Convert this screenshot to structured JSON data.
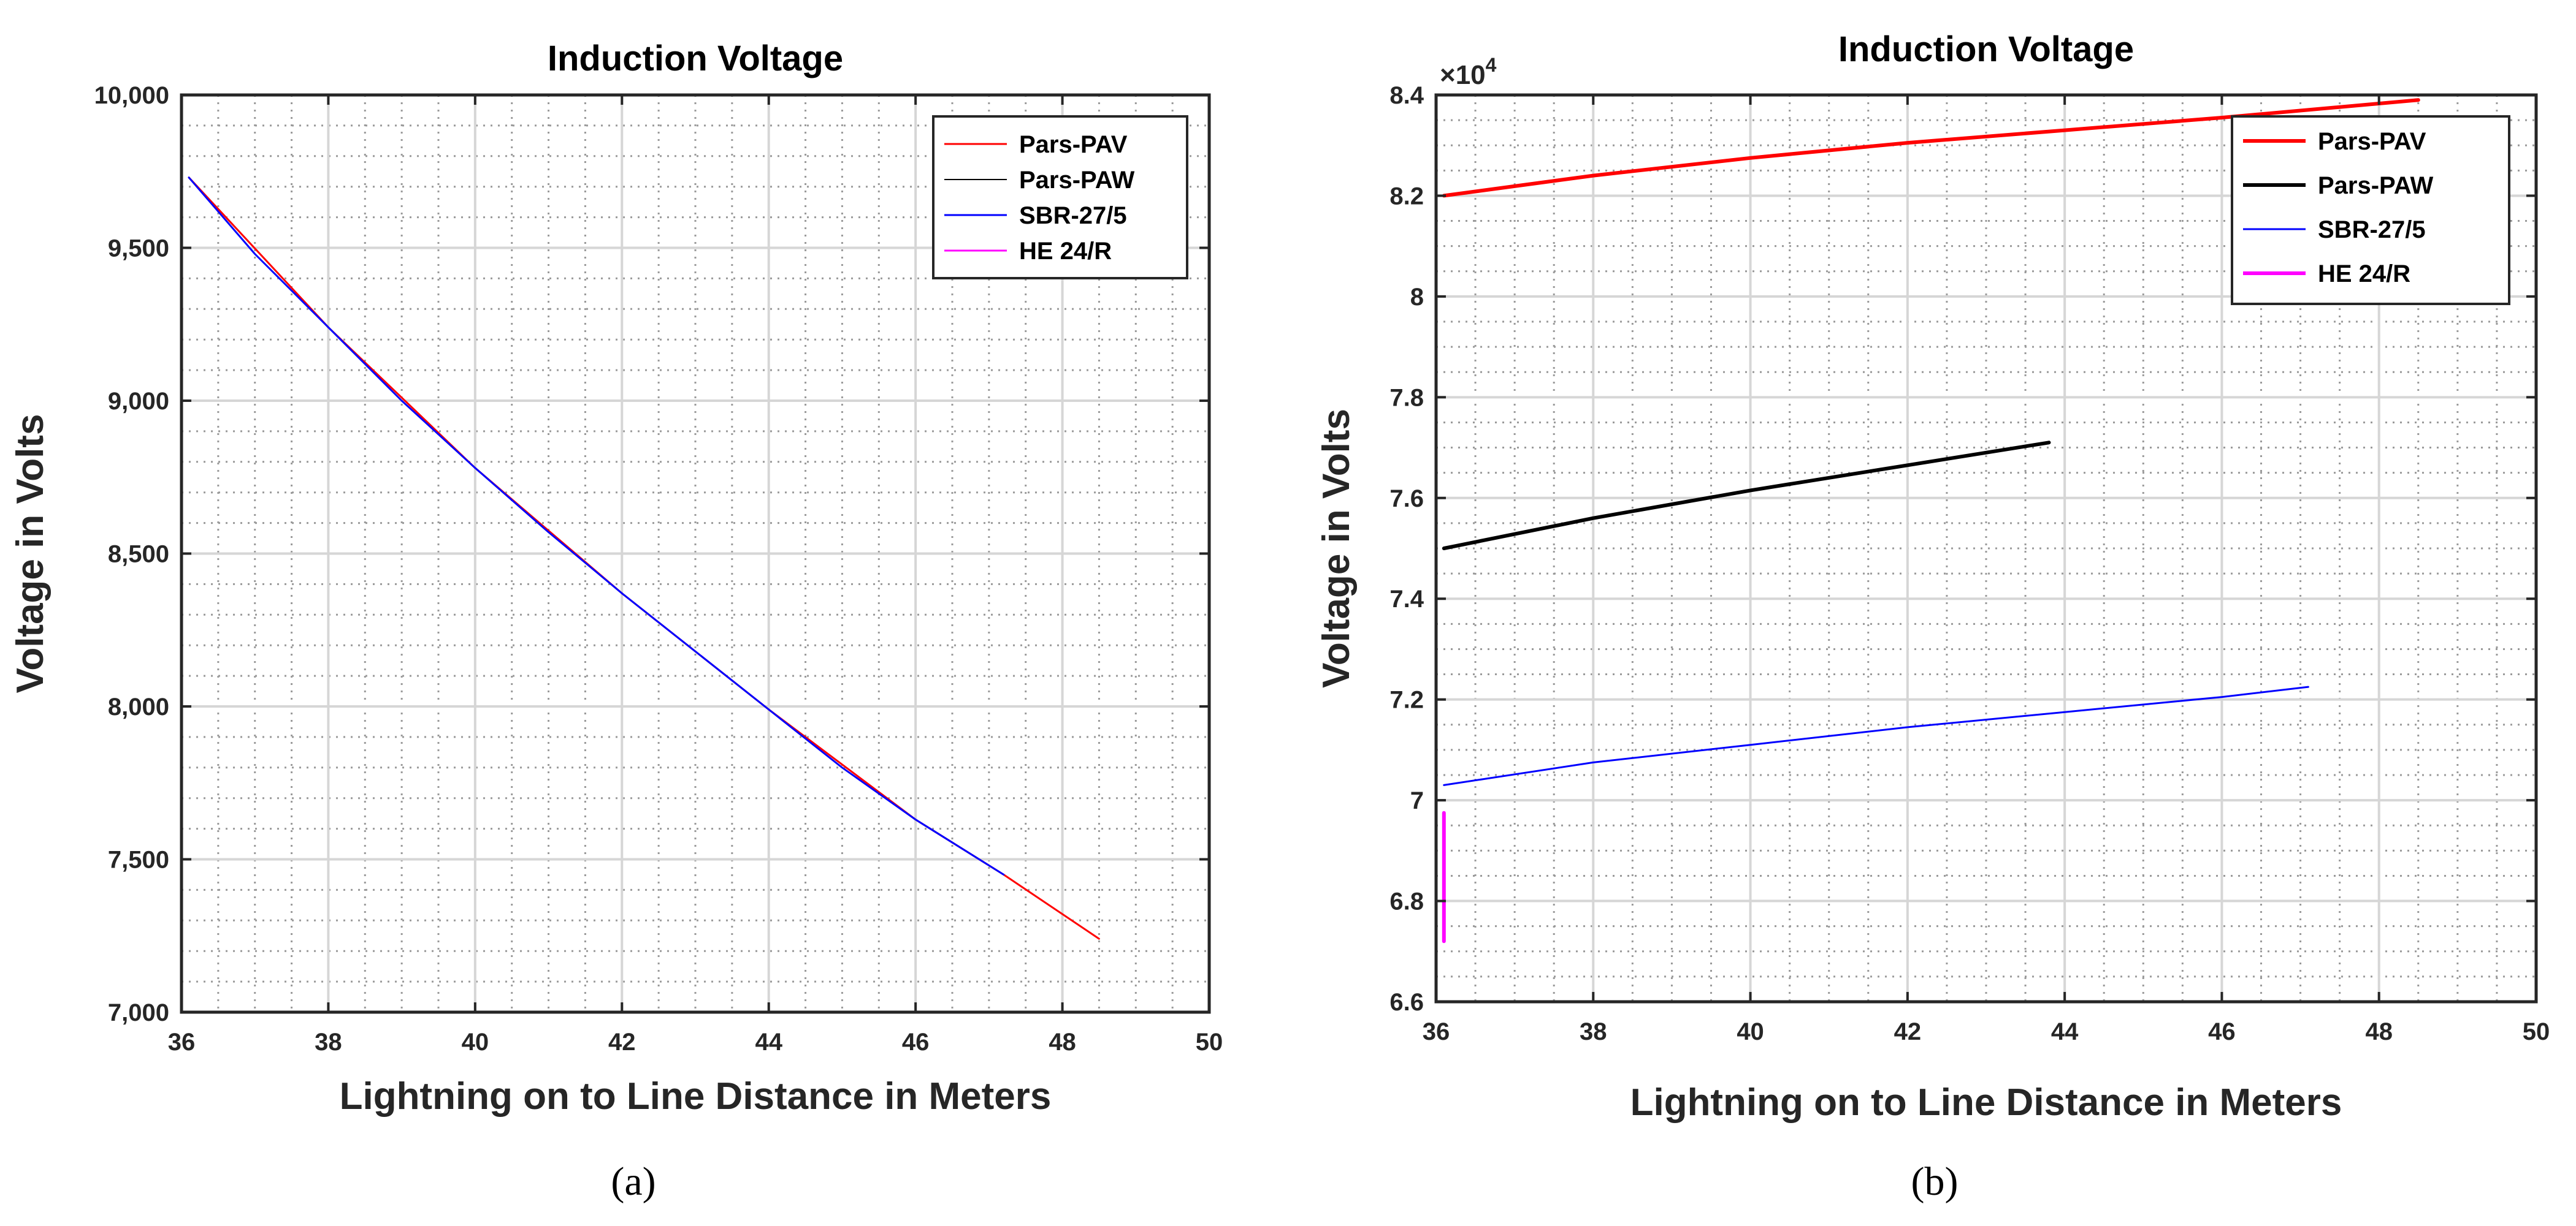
{
  "chart_data": [
    {
      "type": "line",
      "panel": "(a)",
      "title": "Induction Voltage",
      "xlabel": "Lightning on to Line Distance in Meters",
      "ylabel": "Voltage in Volts",
      "xlim": [
        36,
        50
      ],
      "ylim": [
        7000,
        10000
      ],
      "xticks": [
        36,
        38,
        40,
        42,
        44,
        46,
        48,
        50
      ],
      "xtick_labels": [
        "36",
        "38",
        "40",
        "42",
        "44",
        "46",
        "48",
        "50"
      ],
      "yticks": [
        7000,
        7500,
        8000,
        8500,
        9000,
        9500,
        10000
      ],
      "ytick_labels": [
        "7,000",
        "7,500",
        "8,000",
        "8,500",
        "9,000",
        "9,500",
        "10,000"
      ],
      "grid": true,
      "legend_position": "top-right",
      "series": [
        {
          "name": "Pars-PAV",
          "color": "#ff0000",
          "width": 3,
          "x": [
            36.1,
            38,
            40,
            42,
            44,
            46,
            47.2,
            48.5
          ],
          "y": [
            9730,
            9240,
            8780,
            8370,
            7990,
            7630,
            7450,
            7240
          ]
        },
        {
          "name": "Pars-PAW",
          "color": "#000000",
          "width": 2,
          "x": [],
          "y": []
        },
        {
          "name": "SBR-27/5",
          "color": "#0000ff",
          "width": 3,
          "x": [
            36.1,
            37,
            38,
            39,
            40,
            41,
            42,
            43,
            44,
            45,
            46,
            47.2
          ],
          "y": [
            9730,
            9480,
            9240,
            9000,
            8780,
            8570,
            8370,
            8180,
            7990,
            7800,
            7630,
            7450
          ]
        },
        {
          "name": "HE 24/R",
          "color": "#ff00ff",
          "width": 3,
          "x": [],
          "y": []
        }
      ]
    },
    {
      "type": "line",
      "panel": "(b)",
      "title": "Induction Voltage",
      "xlabel": "Lightning on to Line Distance in Meters",
      "ylabel": "Voltage in Volts",
      "multiplier_base": "×10",
      "multiplier_exp": "4",
      "xlim": [
        36,
        50
      ],
      "ylim": [
        6.6,
        8.4
      ],
      "xticks": [
        36,
        38,
        40,
        42,
        44,
        46,
        48,
        50
      ],
      "xtick_labels": [
        "36",
        "38",
        "40",
        "42",
        "44",
        "46",
        "48",
        "50"
      ],
      "yticks": [
        6.6,
        6.8,
        7.0,
        7.2,
        7.4,
        7.6,
        7.8,
        8.0,
        8.2,
        8.4
      ],
      "ytick_labels": [
        "6.6",
        "6.8",
        "7",
        "7.2",
        "7.4",
        "7.6",
        "7.8",
        "8",
        "8.2",
        "8.4"
      ],
      "grid": true,
      "legend_position": "top-right",
      "series": [
        {
          "name": "Pars-PAV",
          "color": "#ff0000",
          "width": 6,
          "x": [
            36.1,
            38,
            40,
            42,
            44,
            46,
            48.5
          ],
          "y": [
            8.2,
            8.24,
            8.275,
            8.305,
            8.33,
            8.355,
            8.39
          ]
        },
        {
          "name": "Pars-PAW",
          "color": "#000000",
          "width": 6,
          "x": [
            36.1,
            38,
            40,
            42,
            43.8
          ],
          "y": [
            7.5,
            7.56,
            7.615,
            7.665,
            7.71
          ]
        },
        {
          "name": "SBR-27/5",
          "color": "#0000ff",
          "width": 3,
          "x": [
            36.1,
            38,
            40,
            42,
            44,
            46,
            47.1
          ],
          "y": [
            7.03,
            7.075,
            7.11,
            7.145,
            7.175,
            7.205,
            7.225
          ]
        },
        {
          "name": "HE 24/R",
          "color": "#ff00ff",
          "width": 6,
          "x": [
            36.1,
            36.1
          ],
          "y": [
            6.72,
            6.975
          ]
        }
      ]
    }
  ],
  "captions": [
    "(a)",
    "(b)"
  ]
}
